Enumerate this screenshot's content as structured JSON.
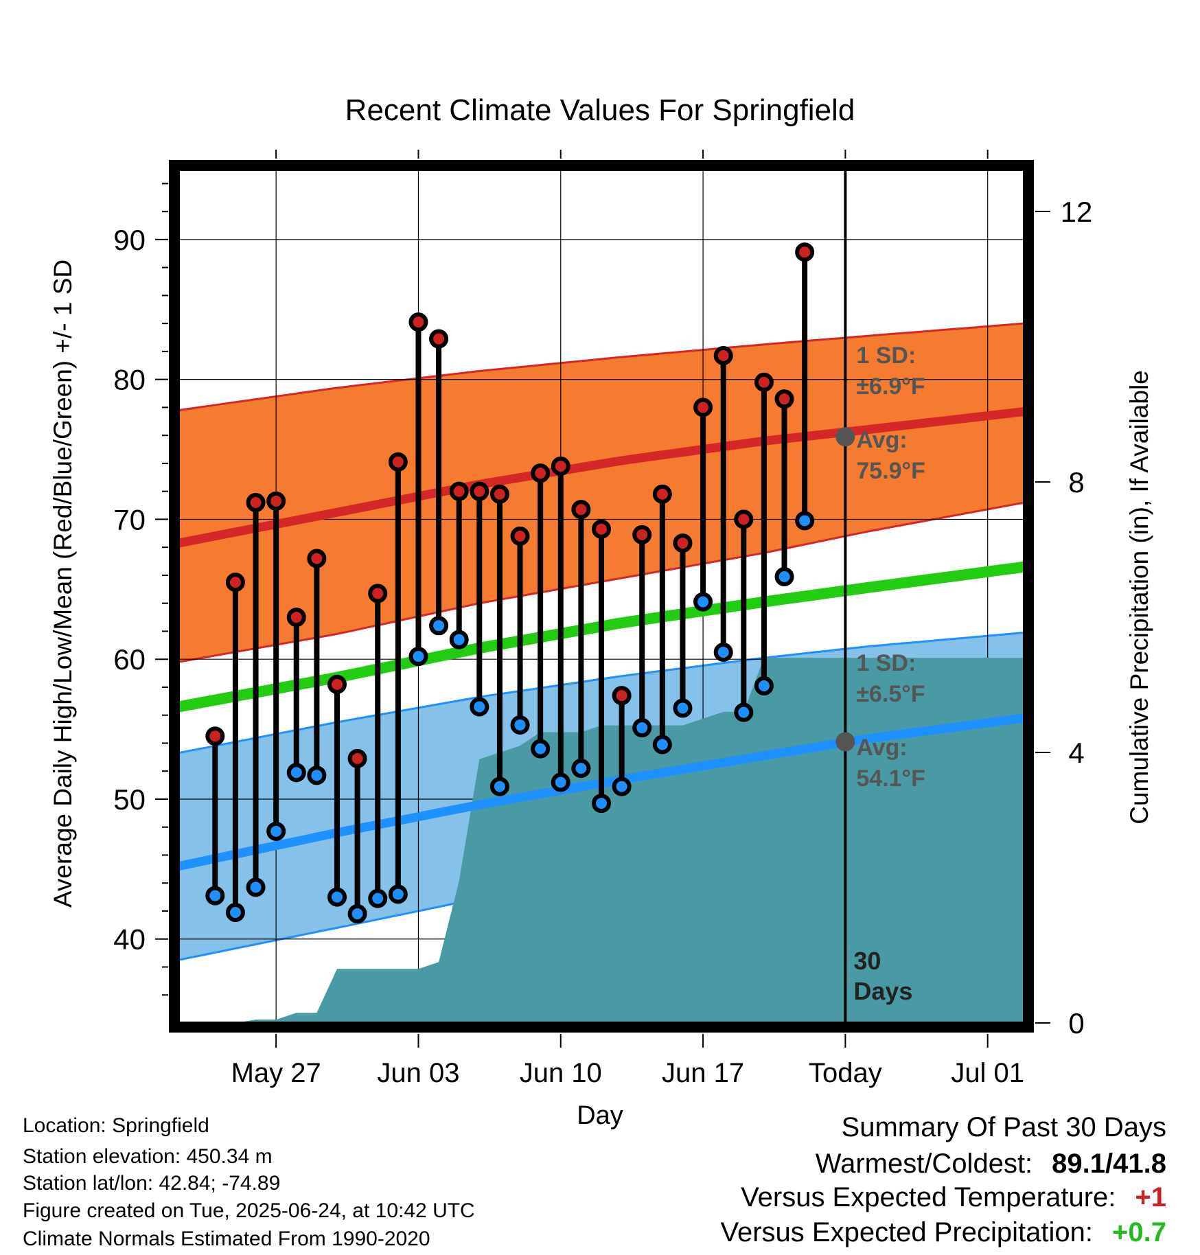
{
  "chart_data": {
    "type": "line",
    "title": "Recent Climate Values For Springfield",
    "xlabel": "Day",
    "ylabel": "Average Daily High/Low/Mean (Red/Blue/Green) +/- 1 SD",
    "y2label": "Cumulative Precipitation (in), If Available",
    "ylim": [
      34,
      95
    ],
    "y2lim": [
      0,
      24
    ],
    "xlim": [
      -2.8,
      38.8
    ],
    "x_ticks": [
      {
        "x": 2,
        "label": "May 27"
      },
      {
        "x": 9,
        "label": "Jun 03"
      },
      {
        "x": 16,
        "label": "Jun 10"
      },
      {
        "x": 23,
        "label": "Jun 17"
      },
      {
        "x": 30,
        "label": "Today"
      },
      {
        "x": 37,
        "label": "Jul 01"
      }
    ],
    "y_ticks": [
      40,
      50,
      60,
      70,
      80,
      90
    ],
    "y2_ticks": [
      0,
      4,
      8,
      12
    ],
    "today_x": 30,
    "today_label": "30 Days",
    "high_series_name": "High",
    "low_series_name": "Low",
    "observations": [
      {
        "x": -1,
        "high": 54.5,
        "low": 43.1
      },
      {
        "x": 0,
        "high": 65.5,
        "low": 41.9
      },
      {
        "x": 1,
        "high": 71.2,
        "low": 43.7
      },
      {
        "x": 2,
        "high": 71.3,
        "low": 47.7
      },
      {
        "x": 3,
        "high": 63.0,
        "low": 51.9
      },
      {
        "x": 4,
        "high": 67.2,
        "low": 51.7
      },
      {
        "x": 5,
        "high": 58.2,
        "low": 43.0
      },
      {
        "x": 6,
        "high": 52.9,
        "low": 41.8
      },
      {
        "x": 7,
        "high": 64.7,
        "low": 42.9
      },
      {
        "x": 8,
        "high": 74.1,
        "low": 43.2
      },
      {
        "x": 9,
        "high": 84.1,
        "low": 60.2
      },
      {
        "x": 10,
        "high": 82.9,
        "low": 62.4
      },
      {
        "x": 11,
        "high": 72.0,
        "low": 61.4
      },
      {
        "x": 12,
        "high": 72.0,
        "low": 56.6
      },
      {
        "x": 13,
        "high": 71.8,
        "low": 50.9
      },
      {
        "x": 14,
        "high": 68.8,
        "low": 55.3
      },
      {
        "x": 15,
        "high": 73.3,
        "low": 53.6
      },
      {
        "x": 16,
        "high": 73.8,
        "low": 51.2
      },
      {
        "x": 17,
        "high": 70.7,
        "low": 52.2
      },
      {
        "x": 18,
        "high": 69.3,
        "low": 49.7
      },
      {
        "x": 19,
        "high": 57.4,
        "low": 50.9
      },
      {
        "x": 20,
        "high": 68.9,
        "low": 55.1
      },
      {
        "x": 21,
        "high": 71.8,
        "low": 53.9
      },
      {
        "x": 22,
        "high": 68.3,
        "low": 56.5
      },
      {
        "x": 23,
        "high": 78.0,
        "low": 64.1
      },
      {
        "x": 24,
        "high": 81.7,
        "low": 60.5
      },
      {
        "x": 25,
        "high": 70.0,
        "low": 56.2
      },
      {
        "x": 26,
        "high": 79.8,
        "low": 58.1
      },
      {
        "x": 27,
        "high": 78.6,
        "low": 65.9
      },
      {
        "x": 28,
        "high": 89.1,
        "low": 69.9
      }
    ],
    "normals": {
      "x": [
        -2.8,
        5,
        12,
        19,
        26,
        31,
        38.8
      ],
      "high_mean": [
        68.3,
        70.5,
        72.5,
        74.2,
        75.6,
        76.4,
        77.7
      ],
      "high_sd_upper": [
        77.8,
        79.4,
        80.6,
        81.6,
        82.5,
        83.1,
        84.0
      ],
      "high_sd_lower": [
        59.8,
        61.8,
        64.0,
        65.8,
        67.6,
        69.1,
        71.2
      ],
      "mean": [
        56.6,
        58.7,
        60.8,
        62.6,
        64.1,
        65.1,
        66.6
      ],
      "low_mean": [
        45.2,
        47.6,
        49.6,
        51.4,
        53.1,
        54.3,
        55.8
      ],
      "low_sd_upper": [
        53.3,
        55.5,
        57.3,
        58.8,
        60.1,
        60.9,
        61.9
      ],
      "low_sd_lower": [
        38.5,
        40.8,
        42.9,
        44.9,
        46.7,
        47.9,
        49.9
      ]
    },
    "precipitation": {
      "x": [
        -2.8,
        0,
        1,
        2,
        3,
        4,
        5,
        6,
        7,
        8,
        9,
        10,
        11,
        12,
        13,
        14,
        15,
        16,
        17,
        18,
        19,
        20,
        21,
        22,
        23,
        24,
        25,
        26,
        27,
        28,
        29,
        30,
        38.8
      ],
      "y": [
        0.0,
        0.0,
        0.05,
        0.05,
        0.15,
        0.15,
        0.8,
        0.8,
        0.8,
        0.8,
        0.8,
        0.9,
        2.1,
        3.9,
        4.0,
        4.1,
        4.3,
        4.3,
        4.3,
        4.4,
        4.4,
        4.4,
        4.4,
        4.4,
        4.5,
        4.6,
        4.6,
        5.4,
        5.4,
        5.4,
        5.4,
        5.4,
        5.4
      ]
    },
    "annotations": {
      "high_sd": "1 SD:",
      "high_sd_value": "±6.9°F",
      "high_avg": "Avg:",
      "high_avg_value": "75.9°F",
      "high_avg_y": 75.9,
      "low_sd": "1 SD:",
      "low_sd_value": "±6.5°F",
      "low_avg": "Avg:",
      "low_avg_value": "54.1°F",
      "low_avg_y": 54.1
    },
    "colors": {
      "high_band": "#f47b30",
      "high_line": "#d62728",
      "low_band": "#85c1e9",
      "low_line": "#1e90ff",
      "mean_line": "#22cc11",
      "precip": "#4a9aa5",
      "high_marker": "#cc2222",
      "low_marker": "#1e8fff"
    }
  },
  "info": {
    "location": "Location: Springfield",
    "elevation": "Station elevation: 450.34 m",
    "latlon": "Station lat/lon: 42.84; -74.89",
    "created": "Figure created on Tue, 2025-06-24, at 10:42 UTC",
    "normals": "Climate Normals Estimated From 1990-2020"
  },
  "summary": {
    "title": "Summary Of Past 30 Days",
    "warm_cold_label": "Warmest/Coldest:",
    "warm_cold_value": "89.1/41.8",
    "temp_label": "Versus Expected Temperature:",
    "temp_value": "+1",
    "precip_label": "Versus Expected Precipitation:",
    "precip_value": "+0.7"
  }
}
